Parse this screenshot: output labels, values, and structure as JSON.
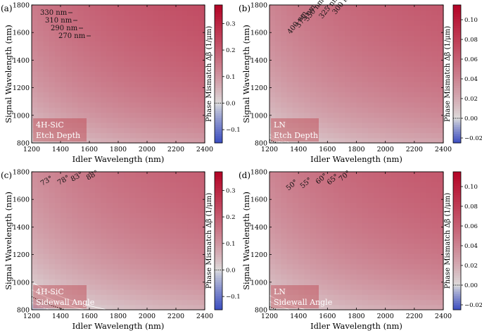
{
  "figure": {
    "colors": {
      "cold": "#3a4cc0",
      "neutral": "#dddddd",
      "hot": "#b40426",
      "contour": "#ffffff",
      "zero_contour": "#111111",
      "label_box_bg": "#b8222e",
      "label_text": "#ffffff"
    }
  },
  "chart_data": [
    {
      "type": "heatmap",
      "panel_label": "(a)",
      "material": "4H-SiC",
      "parameter": "Etch Depth",
      "xlabel": "Idler Wavelength (nm)",
      "ylabel": "Signal Wavelength (nm)",
      "xlim": [
        1200,
        2400
      ],
      "ylim": [
        800,
        1800
      ],
      "xticks": [
        "1200",
        "1400",
        "1600",
        "1800",
        "2000",
        "2200",
        "2400"
      ],
      "yticks": [
        "800",
        "1000",
        "1200",
        "1400",
        "1600",
        "1800"
      ],
      "grid_cells": {
        "nx": 30,
        "ny": 27
      },
      "colorbar": {
        "label": "Phase Mismatch Δβ (1/μm)",
        "min": -0.15,
        "max": 0.37,
        "ticks": [
          -0.1,
          0.0,
          0.1,
          0.2,
          0.3
        ],
        "tick_labels": [
          "−0.1",
          "0.0",
          "0.1",
          "0.2",
          "0.3"
        ]
      },
      "model": {
        "c_sum": 2.12,
        "dc_per_unit": -0.05,
        "scale": 0.2,
        "mask_threshold": null
      },
      "contours": [
        {
          "label": "330 nm",
          "level": 0.15,
          "style": "dashed-white"
        },
        {
          "label": "310 nm",
          "level": 0.1,
          "style": "dashed-white"
        },
        {
          "label": "290 nm",
          "level": 0.05,
          "style": "dashed-white"
        },
        {
          "label": "270 nm",
          "level": 0.0,
          "style": "dotted-black"
        }
      ]
    },
    {
      "type": "heatmap",
      "panel_label": "(b)",
      "material": "LN",
      "parameter": "Etch Depth",
      "xlabel": "Idler Wavelength (nm)",
      "ylabel": "Signal Wavelength (nm)",
      "xlim": [
        1200,
        2400
      ],
      "ylim": [
        800,
        1800
      ],
      "xticks": [
        "1200",
        "1400",
        "1600",
        "1800",
        "2000",
        "2200",
        "2400"
      ],
      "yticks": [
        "800",
        "1000",
        "1200",
        "1400",
        "1600",
        "1800"
      ],
      "grid_cells": {
        "nx": 30,
        "ny": 27
      },
      "colorbar": {
        "label": "Phase Mismatch Δβ (1/μm)",
        "min": -0.025,
        "max": 0.115,
        "ticks": [
          -0.02,
          0.0,
          0.02,
          0.04,
          0.06,
          0.08,
          0.1
        ],
        "tick_labels": [
          "−0.02",
          "0.00",
          "0.02",
          "0.04",
          "0.06",
          "0.08",
          "0.10"
        ]
      },
      "model": {
        "c_sum": 2.05,
        "dc_per_unit": -0.055,
        "scale": 0.06,
        "mask_threshold": 0.045
      },
      "contours": [
        {
          "label": "400 nm",
          "level": 1.0,
          "style": "dashed-white"
        },
        {
          "label": "375 nm",
          "level": 0.5,
          "style": "dashed-white"
        },
        {
          "label": "350 nm",
          "level": 0.0,
          "style": "dotted-black"
        },
        {
          "label": "325 nm",
          "level": -0.5,
          "style": "dashed-white"
        },
        {
          "label": "300 nm",
          "level": -1.0,
          "style": "dashed-white"
        }
      ]
    },
    {
      "type": "heatmap",
      "panel_label": "(c)",
      "material": "4H-SiC",
      "parameter": "Sidewall Angle",
      "xlabel": "Idler Wavelength (nm)",
      "ylabel": "Signal Wavelength (nm)",
      "xlim": [
        1200,
        2400
      ],
      "ylim": [
        800,
        1800
      ],
      "xticks": [
        "1200",
        "1400",
        "1600",
        "1800",
        "2000",
        "2200",
        "2400"
      ],
      "yticks": [
        "800",
        "1000",
        "1200",
        "1400",
        "1600",
        "1800"
      ],
      "grid_cells": {
        "nx": 30,
        "ny": 27
      },
      "colorbar": {
        "label": "Phase Mismatch Δβ (1/μm)",
        "min": -0.15,
        "max": 0.37,
        "ticks": [
          -0.1,
          0.0,
          0.1,
          0.2,
          0.3
        ],
        "tick_labels": [
          "−0.1",
          "0.0",
          "0.1",
          "0.2",
          "0.3"
        ]
      },
      "model": {
        "c_sum": 1.95,
        "dc_per_unit": -0.06,
        "scale": 0.2,
        "mask_threshold": null
      },
      "contours": [
        {
          "label": "73°",
          "level": 2.0,
          "style": "solid-white"
        },
        {
          "label": "78°",
          "level": 1.0,
          "style": "solid-white"
        },
        {
          "label": "83°",
          "level": 0.0,
          "style": "dotted-black"
        },
        {
          "label": "88°",
          "level": -0.9,
          "style": "dashed-white"
        }
      ]
    },
    {
      "type": "heatmap",
      "panel_label": "(d)",
      "material": "LN",
      "parameter": "Sidewall Angle",
      "xlabel": "Idler Wavelength (nm)",
      "ylabel": "Signal Wavelength (nm)",
      "xlim": [
        1200,
        2400
      ],
      "ylim": [
        800,
        1800
      ],
      "xticks": [
        "1200",
        "1400",
        "1600",
        "1800",
        "2000",
        "2200",
        "2400"
      ],
      "yticks": [
        "800",
        "1000",
        "1200",
        "1400",
        "1600",
        "1800"
      ],
      "grid_cells": {
        "nx": 30,
        "ny": 27
      },
      "colorbar": {
        "label": "Phase Mismatch Δβ (1/μm)",
        "min": -0.025,
        "max": 0.115,
        "ticks": [
          -0.02,
          0.0,
          0.02,
          0.04,
          0.06,
          0.08,
          0.1
        ],
        "tick_labels": [
          "−0.02",
          "0.00",
          "0.02",
          "0.04",
          "0.06",
          "0.08",
          "0.10"
        ]
      },
      "model": {
        "c_sum": 2.05,
        "dc_per_unit": -0.055,
        "scale": 0.06,
        "mask_threshold": 0.045
      },
      "contours": [
        {
          "label": "50°",
          "level": 2.0,
          "style": "solid-white"
        },
        {
          "label": "55°",
          "level": 1.0,
          "style": "solid-white"
        },
        {
          "label": "60°",
          "level": 0.0,
          "style": "dotted-black"
        },
        {
          "label": "65°",
          "level": -0.8,
          "style": "dashed-white"
        },
        {
          "label": "70°",
          "level": -1.6,
          "style": "dashed-white"
        }
      ]
    }
  ]
}
